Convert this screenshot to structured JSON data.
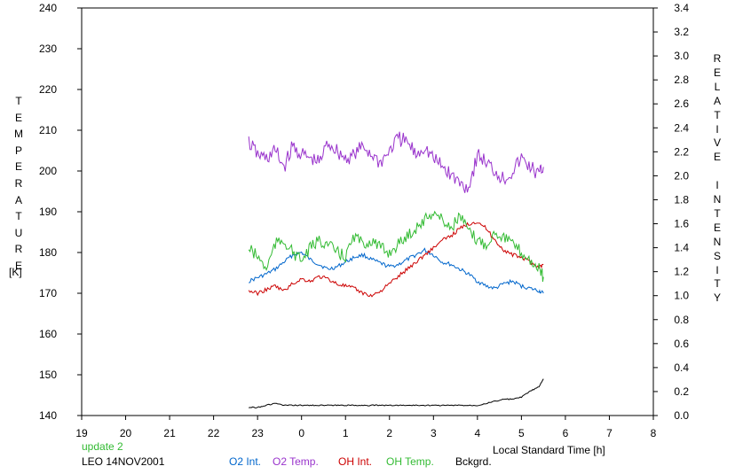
{
  "chart_data": {
    "type": "line",
    "left_axis": {
      "label_letters": [
        "T",
        "E",
        "M",
        "P",
        "E",
        "R",
        "A",
        "T",
        "U",
        "R",
        "E"
      ],
      "unit": "[K]",
      "ylim": [
        140,
        240
      ],
      "ticks": [
        "140",
        "150",
        "160",
        "170",
        "180",
        "190",
        "200",
        "210",
        "220",
        "230",
        "240"
      ]
    },
    "right_axis": {
      "label_letters": [
        "R",
        "E",
        "L",
        "A",
        "T",
        "I",
        "V",
        "E",
        "",
        "I",
        "N",
        "T",
        "E",
        "N",
        "S",
        "I",
        "T",
        "Y"
      ],
      "ylim": [
        0.0,
        3.4
      ],
      "ticks": [
        "0.0",
        "0.2",
        "0.4",
        "0.6",
        "0.8",
        "1.0",
        "1.2",
        "1.4",
        "1.6",
        "1.8",
        "2.0",
        "2.2",
        "2.4",
        "2.6",
        "2.8",
        "3.0",
        "3.2",
        "3.4"
      ]
    },
    "x_axis": {
      "label": "Local Standard Time [h]",
      "range": [
        19,
        32
      ],
      "ticks": [
        "19",
        "20",
        "21",
        "22",
        "23",
        "0",
        "1",
        "2",
        "3",
        "4",
        "5",
        "6",
        "7",
        "8"
      ]
    },
    "series": [
      {
        "name": "O2 Int.",
        "color": "#0066cc",
        "axis": "right",
        "x": [
          22.8,
          23.0,
          23.2,
          23.4,
          23.6,
          23.8,
          24.0,
          24.2,
          24.4,
          24.6,
          24.8,
          25.0,
          25.2,
          25.4,
          25.6,
          25.8,
          26.0,
          26.2,
          26.4,
          26.6,
          26.8,
          27.0,
          27.2,
          27.4,
          27.6,
          27.8,
          28.0,
          28.2,
          28.4,
          28.6,
          28.8,
          29.0,
          29.2,
          29.4,
          29.5
        ],
        "y": [
          1.12,
          1.15,
          1.18,
          1.22,
          1.28,
          1.34,
          1.36,
          1.3,
          1.26,
          1.22,
          1.24,
          1.28,
          1.32,
          1.34,
          1.3,
          1.27,
          1.24,
          1.26,
          1.3,
          1.34,
          1.38,
          1.34,
          1.28,
          1.26,
          1.22,
          1.18,
          1.12,
          1.08,
          1.06,
          1.1,
          1.12,
          1.08,
          1.06,
          1.04,
          1.02
        ]
      },
      {
        "name": "O2 Temp.",
        "color": "#9933cc",
        "axis": "left",
        "x": [
          22.8,
          23.0,
          23.2,
          23.4,
          23.6,
          23.8,
          24.0,
          24.2,
          24.4,
          24.6,
          24.8,
          25.0,
          25.2,
          25.4,
          25.6,
          25.8,
          26.0,
          26.2,
          26.4,
          26.6,
          26.8,
          27.0,
          27.2,
          27.4,
          27.6,
          27.8,
          28.0,
          28.2,
          28.4,
          28.6,
          28.8,
          29.0,
          29.2,
          29.4,
          29.5
        ],
        "y": [
          207,
          204,
          203,
          205,
          201,
          206,
          204,
          203,
          202,
          207,
          205,
          203,
          204,
          206,
          204,
          202,
          205,
          208,
          207,
          204,
          206,
          203,
          201,
          199,
          197,
          196,
          204,
          202,
          200,
          198,
          200,
          203,
          201,
          199,
          201
        ]
      },
      {
        "name": "OH Int.",
        "color": "#cc0000",
        "axis": "right",
        "x": [
          22.8,
          23.0,
          23.2,
          23.4,
          23.6,
          23.8,
          24.0,
          24.2,
          24.4,
          24.6,
          24.8,
          25.0,
          25.2,
          25.4,
          25.6,
          25.8,
          26.0,
          26.2,
          26.4,
          26.6,
          26.8,
          27.0,
          27.2,
          27.4,
          27.6,
          27.8,
          28.0,
          28.2,
          28.4,
          28.6,
          28.8,
          29.0,
          29.2,
          29.4,
          29.5
        ],
        "y": [
          1.04,
          1.02,
          1.05,
          1.08,
          1.04,
          1.1,
          1.14,
          1.12,
          1.16,
          1.14,
          1.1,
          1.08,
          1.06,
          1.02,
          1.0,
          1.04,
          1.1,
          1.16,
          1.22,
          1.28,
          1.34,
          1.4,
          1.46,
          1.5,
          1.56,
          1.6,
          1.62,
          1.56,
          1.46,
          1.38,
          1.34,
          1.32,
          1.28,
          1.24,
          1.26
        ]
      },
      {
        "name": "OH Temp.",
        "color": "#33bb33",
        "axis": "left",
        "x": [
          22.8,
          23.0,
          23.2,
          23.4,
          23.6,
          23.8,
          24.0,
          24.2,
          24.4,
          24.6,
          24.8,
          25.0,
          25.2,
          25.4,
          25.6,
          25.8,
          26.0,
          26.2,
          26.4,
          26.6,
          26.8,
          27.0,
          27.2,
          27.4,
          27.6,
          27.8,
          28.0,
          28.2,
          28.4,
          28.6,
          28.8,
          29.0,
          29.2,
          29.4,
          29.5
        ],
        "y": [
          181,
          179,
          176,
          182,
          183,
          180,
          178,
          181,
          183,
          182,
          180,
          179,
          184,
          182,
          183,
          181,
          180,
          182,
          184,
          186,
          188,
          190,
          188,
          186,
          189,
          185,
          183,
          182,
          185,
          184,
          182,
          180,
          178,
          176,
          174
        ]
      },
      {
        "name": "Bckgrd.",
        "color": "#000000",
        "axis": "left",
        "x": [
          22.8,
          23.0,
          23.2,
          23.4,
          23.6,
          23.8,
          24.0,
          24.2,
          24.4,
          24.6,
          24.8,
          25.0,
          25.2,
          25.4,
          25.6,
          25.8,
          26.0,
          26.2,
          26.4,
          26.6,
          26.8,
          27.0,
          27.2,
          27.4,
          27.6,
          27.8,
          28.0,
          28.2,
          28.4,
          28.6,
          28.8,
          29.0,
          29.2,
          29.4,
          29.5
        ],
        "y": [
          142,
          142,
          142.5,
          143,
          142.5,
          142.5,
          142.5,
          142.5,
          142.5,
          142.5,
          142.5,
          142.5,
          142.5,
          142.5,
          142.5,
          142.5,
          142.5,
          142.5,
          142.5,
          142.5,
          142.5,
          142.5,
          142.5,
          142.5,
          142.5,
          142.5,
          142.5,
          143,
          143.5,
          144,
          144,
          144.5,
          146,
          147,
          149
        ]
      }
    ]
  },
  "footer": {
    "update": "update 2",
    "station": "LEO 14NOV2001",
    "legend": [
      "O2 Int.",
      "O2 Temp.",
      "OH Int.",
      "OH Temp.",
      "Bckgrd."
    ]
  },
  "colors": {
    "update": "#33bb33",
    "o2_int": "#0066cc",
    "o2_temp": "#9933cc",
    "oh_int": "#cc0000",
    "oh_temp": "#33bb33",
    "bckgrd": "#000000"
  }
}
